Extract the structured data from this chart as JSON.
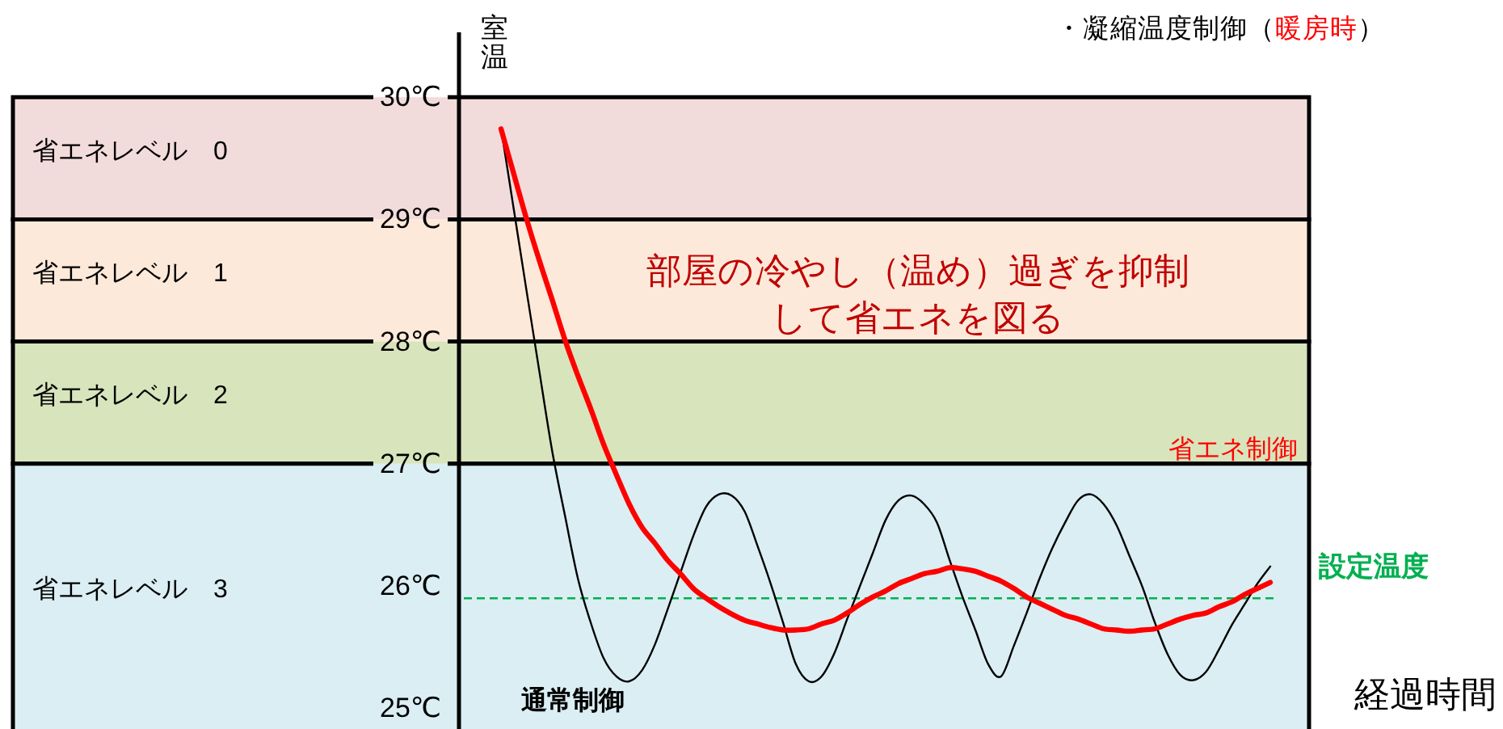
{
  "chart_data": {
    "type": "line",
    "title": "・凝縮温度制御（暖房時）",
    "ylabel": "室温",
    "xlabel": "経過時間",
    "annotations": [
      "部屋の冷やし（温め）過ぎを抑制して省エネを図る"
    ],
    "categories": [
      null,
      null,
      null,
      null,
      null,
      null,
      null,
      null,
      null,
      null,
      null,
      null,
      null,
      null,
      null,
      null,
      null,
      null,
      null,
      null,
      null,
      null,
      null,
      null,
      null,
      null,
      null,
      null,
      null,
      null,
      null,
      null,
      null,
      null,
      null,
      null,
      null,
      null,
      null,
      null,
      null,
      null,
      null,
      null,
      null,
      null,
      null,
      null,
      null,
      null,
      null,
      null,
      null,
      null,
      null,
      null,
      null,
      null,
      null,
      null,
      null
    ],
    "series": [
      {
        "name": "通常制御",
        "color": "#000000",
        "values": [
          29.75,
          29.08,
          28.41,
          27.75,
          27.1,
          26.57,
          26.06,
          25.7,
          25.41,
          25.26,
          25.22,
          25.31,
          25.52,
          25.81,
          26.11,
          26.41,
          26.65,
          26.75,
          26.74,
          26.61,
          26.33,
          26.03,
          25.7,
          25.36,
          25.22,
          25.26,
          25.45,
          25.73,
          26.0,
          26.27,
          26.54,
          26.7,
          26.74,
          26.67,
          26.52,
          26.21,
          25.91,
          25.64,
          25.36,
          25.26,
          25.51,
          25.78,
          26.06,
          26.31,
          26.52,
          26.7,
          26.75,
          26.67,
          26.5,
          26.25,
          26.0,
          25.7,
          25.44,
          25.27,
          25.23,
          25.3,
          25.48,
          25.68,
          25.85,
          26.02,
          26.16
        ]
      },
      {
        "name": "省エネ制御",
        "color": "#ff0000",
        "values": [
          29.74,
          29.37,
          29.0,
          28.66,
          28.34,
          28.01,
          27.72,
          27.45,
          27.16,
          26.91,
          26.67,
          26.48,
          26.35,
          26.21,
          26.1,
          25.98,
          25.9,
          25.83,
          25.77,
          25.72,
          25.69,
          25.66,
          25.64,
          25.64,
          25.65,
          25.69,
          25.72,
          25.78,
          25.85,
          25.91,
          25.96,
          26.02,
          26.06,
          26.1,
          26.12,
          26.15,
          26.14,
          26.12,
          26.08,
          26.04,
          25.98,
          25.91,
          25.86,
          25.81,
          25.76,
          25.73,
          25.69,
          25.65,
          25.64,
          25.63,
          25.64,
          25.65,
          25.69,
          25.73,
          25.76,
          25.78,
          25.83,
          25.87,
          25.93,
          25.98,
          26.03
        ]
      }
    ],
    "ylim": [
      24.83,
      30.53
    ],
    "yticks": [
      {
        "value": 30,
        "label": "30℃"
      },
      {
        "value": 29,
        "label": "29℃"
      },
      {
        "value": 28,
        "label": "28℃"
      },
      {
        "value": 27,
        "label": "27℃"
      },
      {
        "value": 26,
        "label": "26℃"
      },
      {
        "value": 25,
        "label": "25℃"
      }
    ],
    "bands": [
      {
        "axis": "y",
        "from": 29,
        "to": 30,
        "label": "省エネレベル　0",
        "color": "#f2dcdb"
      },
      {
        "axis": "y",
        "from": 28,
        "to": 29,
        "label": "省エネレベル　1",
        "color": "#fde9d9"
      },
      {
        "axis": "y",
        "from": 27,
        "to": 28,
        "label": "省エネレベル　2",
        "color": "#d8e4bc"
      },
      {
        "axis": "y",
        "from": 24.83,
        "to": 27,
        "label": "省エネレベル　3",
        "color": "#daeef3"
      }
    ],
    "ref_lines": [
      {
        "axis": "y",
        "value": 25.9,
        "label": "設定温度",
        "color": "#00b050",
        "line_style": "dashed"
      }
    ]
  }
}
